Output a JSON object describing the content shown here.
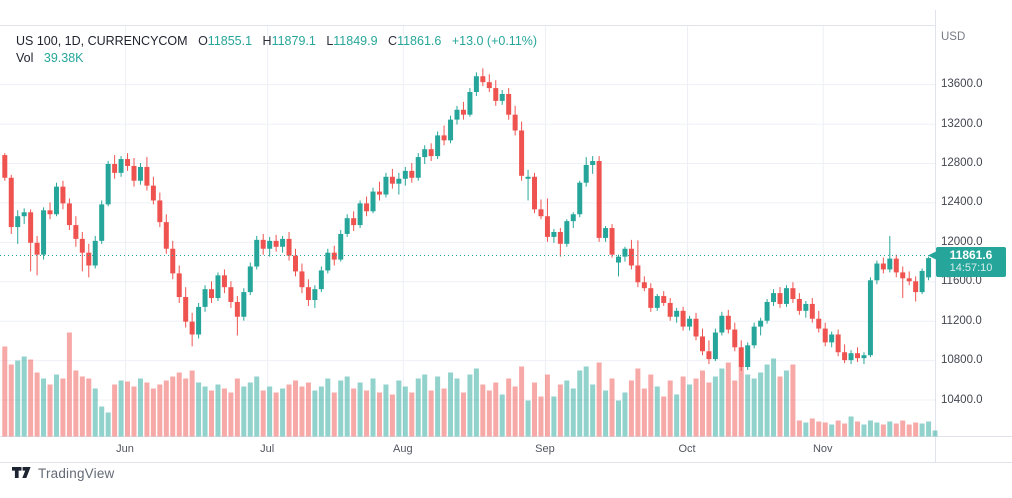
{
  "header": {
    "symbol_title": "US 100, 1D, CURRENCYCOM",
    "ohlc": {
      "o_label": "O",
      "o_value": "11855.1",
      "h_label": "H",
      "h_value": "11879.1",
      "l_label": "L",
      "l_value": "11849.9",
      "c_label": "C",
      "c_value": "11861.6",
      "change": "+13.0 (+0.11%)"
    },
    "volume_row": {
      "label": "Vol",
      "value": "39.38K"
    }
  },
  "price_axis": {
    "currency": "USD",
    "ticks": [
      "13600.0",
      "13200.0",
      "12800.0",
      "12400.0",
      "12000.0",
      "11600.0",
      "11200.0",
      "10800.0",
      "10400.0"
    ],
    "last_price_label": {
      "price": "11861.6",
      "countdown": "14:57:10"
    }
  },
  "time_axis": {
    "months": [
      "Jun",
      "Jul",
      "Aug",
      "Sep",
      "Oct",
      "Nov"
    ]
  },
  "watermark": {
    "text": "TradingView"
  },
  "colors": {
    "up": "#26a69a",
    "down": "#ef5350",
    "vol_up": "rgba(38,166,154,0.5)",
    "vol_down": "rgba(239,83,80,0.5)",
    "grid": "#eef0f6",
    "axis_border": "#e0e3eb",
    "label_bg": "#26a69a",
    "price_line": "#26a69a"
  },
  "chart_data": {
    "type": "candlestick",
    "title": "US 100, 1D, CURRENCYCOM",
    "ylabel": "USD",
    "ylim": [
      10020,
      14200
    ],
    "price_tick_values": [
      13600,
      13200,
      12800,
      12400,
      12000,
      11600,
      11200,
      10800,
      10400
    ],
    "last_price": 11861.6,
    "months": [
      "Jun",
      "Jul",
      "Aug",
      "Sep",
      "Oct",
      "Nov"
    ],
    "month_tick_bar_index": [
      19,
      41,
      62,
      84,
      106,
      127
    ],
    "grid": true,
    "volume_note": "v = relative volume bar height in px, pane max 104",
    "layout": {
      "pane_left": 0,
      "pane_right": 935,
      "pane_top": 25,
      "pane_bottom": 437,
      "bar_start_x": 2.3,
      "bar_spacing": 6.46,
      "body_width": 5,
      "volume_base_y": 436.5,
      "axis_bottom": 463
    },
    "candles": [
      [
        12880,
        12900,
        12620,
        12650,
        90
      ],
      [
        12650,
        12680,
        12080,
        12150,
        72
      ],
      [
        12150,
        12320,
        11980,
        12260,
        76
      ],
      [
        12260,
        12340,
        12180,
        12300,
        80
      ],
      [
        12300,
        12330,
        11700,
        11990,
        77
      ],
      [
        11990,
        12060,
        11660,
        11870,
        64
      ],
      [
        11870,
        12350,
        11820,
        12320,
        58
      ],
      [
        12320,
        12400,
        12230,
        12280,
        52
      ],
      [
        12280,
        12600,
        12260,
        12560,
        62
      ],
      [
        12560,
        12620,
        12330,
        12390,
        58
      ],
      [
        12390,
        12440,
        12120,
        12170,
        104
      ],
      [
        12170,
        12260,
        11950,
        12030,
        66
      ],
      [
        12030,
        12100,
        11700,
        11890,
        60
      ],
      [
        11890,
        11980,
        11640,
        11760,
        58
      ],
      [
        11760,
        12060,
        11730,
        12010,
        48
      ],
      [
        12010,
        12420,
        11980,
        12380,
        30
      ],
      [
        12380,
        12820,
        12360,
        12790,
        24
      ],
      [
        12790,
        12880,
        12640,
        12700,
        52
      ],
      [
        12700,
        12870,
        12660,
        12840,
        56
      ],
      [
        12840,
        12900,
        12720,
        12770,
        55
      ],
      [
        12770,
        12850,
        12560,
        12620,
        50
      ],
      [
        12620,
        12800,
        12580,
        12760,
        58
      ],
      [
        12760,
        12860,
        12520,
        12570,
        54
      ],
      [
        12570,
        12660,
        12380,
        12420,
        48
      ],
      [
        12420,
        12500,
        12150,
        12200,
        52
      ],
      [
        12200,
        12280,
        11880,
        11930,
        56
      ],
      [
        11930,
        12010,
        11620,
        11680,
        60
      ],
      [
        11680,
        11760,
        11380,
        11440,
        64
      ],
      [
        11440,
        11540,
        11130,
        11190,
        58
      ],
      [
        11190,
        11280,
        10940,
        11060,
        66
      ],
      [
        11060,
        11380,
        11020,
        11340,
        54
      ],
      [
        11340,
        11560,
        11290,
        11520,
        50
      ],
      [
        11520,
        11600,
        11380,
        11430,
        46
      ],
      [
        11430,
        11690,
        11400,
        11660,
        52
      ],
      [
        11660,
        11720,
        11480,
        11540,
        48
      ],
      [
        11540,
        11600,
        11330,
        11390,
        44
      ],
      [
        11390,
        11450,
        11050,
        11240,
        58
      ],
      [
        11240,
        11530,
        11200,
        11490,
        50
      ],
      [
        11490,
        11790,
        11460,
        11750,
        54
      ],
      [
        11750,
        12060,
        11720,
        12020,
        60
      ],
      [
        12020,
        12080,
        11870,
        11930,
        46
      ],
      [
        11930,
        12050,
        11850,
        12010,
        50
      ],
      [
        12010,
        12070,
        11900,
        11950,
        44
      ],
      [
        11950,
        12060,
        11890,
        12030,
        48
      ],
      [
        12030,
        12100,
        11810,
        11860,
        52
      ],
      [
        11860,
        11930,
        11650,
        11700,
        56
      ],
      [
        11700,
        11780,
        11480,
        11540,
        50
      ],
      [
        11540,
        11620,
        11350,
        11410,
        54
      ],
      [
        11410,
        11560,
        11330,
        11520,
        46
      ],
      [
        11520,
        11750,
        11490,
        11710,
        50
      ],
      [
        11710,
        11930,
        11680,
        11890,
        58
      ],
      [
        11890,
        11960,
        11760,
        11820,
        44
      ],
      [
        11820,
        12120,
        11800,
        12080,
        56
      ],
      [
        12080,
        12280,
        12050,
        12240,
        60
      ],
      [
        12240,
        12310,
        12110,
        12170,
        48
      ],
      [
        12170,
        12420,
        12140,
        12390,
        54
      ],
      [
        12390,
        12460,
        12260,
        12310,
        46
      ],
      [
        12310,
        12550,
        12290,
        12510,
        58
      ],
      [
        12510,
        12610,
        12420,
        12480,
        44
      ],
      [
        12480,
        12700,
        12450,
        12660,
        52
      ],
      [
        12660,
        12740,
        12540,
        12590,
        42
      ],
      [
        12590,
        12700,
        12480,
        12640,
        56
      ],
      [
        12640,
        12760,
        12570,
        12720,
        50
      ],
      [
        12720,
        12800,
        12600,
        12650,
        44
      ],
      [
        12650,
        12900,
        12620,
        12860,
        58
      ],
      [
        12860,
        12980,
        12790,
        12940,
        62
      ],
      [
        12940,
        13000,
        12820,
        12870,
        46
      ],
      [
        12870,
        13120,
        12840,
        13080,
        60
      ],
      [
        13080,
        13180,
        12980,
        13030,
        48
      ],
      [
        13030,
        13280,
        13000,
        13240,
        64
      ],
      [
        13240,
        13380,
        13190,
        13340,
        58
      ],
      [
        13340,
        13420,
        13240,
        13290,
        44
      ],
      [
        13290,
        13560,
        13270,
        13520,
        62
      ],
      [
        13520,
        13720,
        13480,
        13680,
        68
      ],
      [
        13680,
        13760,
        13580,
        13620,
        52
      ],
      [
        13620,
        13700,
        13520,
        13560,
        46
      ],
      [
        13560,
        13640,
        13380,
        13430,
        54
      ],
      [
        13430,
        13540,
        13390,
        13500,
        42
      ],
      [
        13500,
        13560,
        13240,
        13290,
        58
      ],
      [
        13290,
        13380,
        13080,
        13130,
        50
      ],
      [
        13130,
        13220,
        12620,
        12670,
        70
      ],
      [
        12640,
        12730,
        12420,
        12660,
        36
      ],
      [
        12660,
        12700,
        12290,
        12330,
        54
      ],
      [
        12330,
        12430,
        12230,
        12260,
        40
      ],
      [
        12260,
        12440,
        12000,
        12050,
        62
      ],
      [
        12050,
        12130,
        11990,
        12100,
        40
      ],
      [
        12100,
        12140,
        11850,
        11980,
        52
      ],
      [
        11980,
        12230,
        11950,
        12210,
        56
      ],
      [
        12210,
        12300,
        12140,
        12280,
        48
      ],
      [
        12280,
        12620,
        12250,
        12600,
        66
      ],
      [
        12600,
        12860,
        12560,
        12780,
        70
      ],
      [
        12780,
        12870,
        12690,
        12820,
        52
      ],
      [
        12820,
        12870,
        12000,
        12040,
        74
      ],
      [
        12040,
        12160,
        12000,
        12140,
        46
      ],
      [
        12140,
        12180,
        11840,
        11870,
        58
      ],
      [
        11790,
        11870,
        11650,
        11850,
        36
      ],
      [
        11850,
        11950,
        11800,
        11930,
        44
      ],
      [
        11930,
        12020,
        11720,
        11760,
        56
      ],
      [
        11760,
        12015,
        11540,
        11590,
        68
      ],
      [
        11590,
        11650,
        11500,
        11530,
        48
      ],
      [
        11530,
        11580,
        11290,
        11330,
        62
      ],
      [
        11330,
        11470,
        11300,
        11450,
        50
      ],
      [
        11450,
        11500,
        11350,
        11380,
        40
      ],
      [
        11380,
        11430,
        11200,
        11240,
        56
      ],
      [
        11240,
        11330,
        11180,
        11300,
        42
      ],
      [
        11300,
        11340,
        11100,
        11140,
        60
      ],
      [
        11140,
        11250,
        11100,
        11220,
        52
      ],
      [
        11220,
        11280,
        11000,
        11040,
        58
      ],
      [
        11040,
        11120,
        10850,
        10890,
        66
      ],
      [
        10890,
        11000,
        10760,
        10810,
        54
      ],
      [
        10810,
        11120,
        10790,
        11080,
        60
      ],
      [
        11080,
        11290,
        11050,
        11250,
        68
      ],
      [
        11250,
        11310,
        11070,
        11110,
        74
      ],
      [
        11110,
        11180,
        10890,
        10930,
        56
      ],
      [
        10930,
        11000,
        10690,
        10730,
        70
      ],
      [
        10730,
        10980,
        10700,
        10950,
        62
      ],
      [
        10950,
        11180,
        10920,
        11140,
        58
      ],
      [
        11140,
        11230,
        11050,
        11200,
        64
      ],
      [
        11200,
        11420,
        11170,
        11390,
        72
      ],
      [
        11390,
        11520,
        11350,
        11480,
        78
      ],
      [
        11480,
        11540,
        11330,
        11370,
        60
      ],
      [
        11370,
        11560,
        11340,
        11530,
        66
      ],
      [
        11530,
        11590,
        11380,
        11420,
        72
      ],
      [
        11420,
        11480,
        11260,
        11300,
        16
      ],
      [
        11300,
        11400,
        11230,
        11370,
        14
      ],
      [
        11370,
        11430,
        11180,
        11220,
        18
      ],
      [
        11220,
        11300,
        11080,
        11120,
        15
      ],
      [
        11120,
        11180,
        10940,
        10980,
        14
      ],
      [
        10980,
        11090,
        10930,
        11060,
        12
      ],
      [
        11060,
        11110,
        10840,
        10880,
        16
      ],
      [
        10880,
        10960,
        10770,
        10800,
        13
      ],
      [
        10800,
        10900,
        10760,
        10870,
        20
      ],
      [
        10870,
        10930,
        10780,
        10820,
        15
      ],
      [
        10820,
        10880,
        10760,
        10850,
        12
      ],
      [
        10850,
        11640,
        10830,
        11610,
        16
      ],
      [
        11610,
        11810,
        11570,
        11780,
        14
      ],
      [
        11780,
        11840,
        11680,
        11720,
        12
      ],
      [
        11720,
        12060,
        11690,
        11830,
        15
      ],
      [
        11830,
        11870,
        11640,
        11690,
        13
      ],
      [
        11690,
        11750,
        11430,
        11630,
        16
      ],
      [
        11630,
        11700,
        11560,
        11600,
        12
      ],
      [
        11600,
        11650,
        11395,
        11490,
        14
      ],
      [
        11490,
        11730,
        11470,
        11705,
        13
      ],
      [
        11640,
        11850,
        11610,
        11835,
        15
      ],
      [
        11855,
        11879,
        11850,
        11862,
        6
      ]
    ]
  }
}
